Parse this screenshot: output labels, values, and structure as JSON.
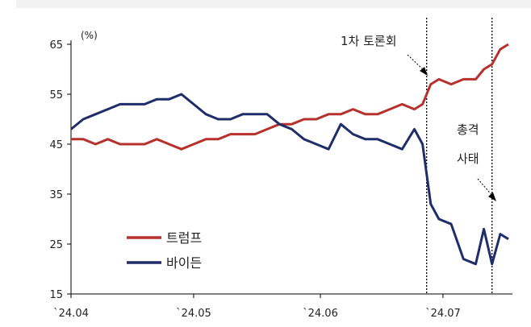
{
  "chart_data": {
    "type": "line",
    "unit_label": "(%)",
    "ylim": [
      15,
      65
    ],
    "yticks": [
      "65",
      "55",
      "45",
      "35",
      "25",
      "15"
    ],
    "xticks": [
      "`24.04",
      "`24.05",
      "`24.06",
      "`24.07"
    ],
    "legend": {
      "placement": "bottom-left"
    },
    "annotations": {
      "debate": {
        "text": "1차 토론회",
        "date": "2024-06-27"
      },
      "shooting": {
        "line1": "총격",
        "line2": "사태",
        "date": "2024-07-13"
      }
    },
    "series": [
      {
        "name": "트럼프",
        "color": "#b7312c",
        "points": [
          [
            "2024-04-01",
            46
          ],
          [
            "2024-04-04",
            46
          ],
          [
            "2024-04-07",
            45
          ],
          [
            "2024-04-10",
            46
          ],
          [
            "2024-04-13",
            45
          ],
          [
            "2024-04-16",
            45
          ],
          [
            "2024-04-19",
            45
          ],
          [
            "2024-04-22",
            46
          ],
          [
            "2024-04-25",
            45
          ],
          [
            "2024-04-28",
            44
          ],
          [
            "2024-05-01",
            45
          ],
          [
            "2024-05-04",
            46
          ],
          [
            "2024-05-07",
            46
          ],
          [
            "2024-05-10",
            47
          ],
          [
            "2024-05-13",
            47
          ],
          [
            "2024-05-16",
            47
          ],
          [
            "2024-05-19",
            48
          ],
          [
            "2024-05-22",
            49
          ],
          [
            "2024-05-25",
            49
          ],
          [
            "2024-05-28",
            50
          ],
          [
            "2024-05-31",
            50
          ],
          [
            "2024-06-03",
            51
          ],
          [
            "2024-06-06",
            51
          ],
          [
            "2024-06-09",
            52
          ],
          [
            "2024-06-12",
            51
          ],
          [
            "2024-06-15",
            51
          ],
          [
            "2024-06-18",
            52
          ],
          [
            "2024-06-21",
            53
          ],
          [
            "2024-06-24",
            52
          ],
          [
            "2024-06-26",
            53
          ],
          [
            "2024-06-28",
            57
          ],
          [
            "2024-06-30",
            58
          ],
          [
            "2024-07-03",
            57
          ],
          [
            "2024-07-06",
            58
          ],
          [
            "2024-07-09",
            58
          ],
          [
            "2024-07-11",
            60
          ],
          [
            "2024-07-13",
            61
          ],
          [
            "2024-07-15",
            64
          ],
          [
            "2024-07-17",
            65
          ]
        ]
      },
      {
        "name": "바이든",
        "color": "#1f2d6b",
        "points": [
          [
            "2024-04-01",
            48
          ],
          [
            "2024-04-04",
            50
          ],
          [
            "2024-04-07",
            51
          ],
          [
            "2024-04-10",
            52
          ],
          [
            "2024-04-13",
            53
          ],
          [
            "2024-04-16",
            53
          ],
          [
            "2024-04-19",
            53
          ],
          [
            "2024-04-22",
            54
          ],
          [
            "2024-04-25",
            54
          ],
          [
            "2024-04-28",
            55
          ],
          [
            "2024-05-01",
            53
          ],
          [
            "2024-05-04",
            51
          ],
          [
            "2024-05-07",
            50
          ],
          [
            "2024-05-10",
            50
          ],
          [
            "2024-05-13",
            51
          ],
          [
            "2024-05-16",
            51
          ],
          [
            "2024-05-19",
            51
          ],
          [
            "2024-05-22",
            49
          ],
          [
            "2024-05-25",
            48
          ],
          [
            "2024-05-28",
            46
          ],
          [
            "2024-05-31",
            45
          ],
          [
            "2024-06-03",
            44
          ],
          [
            "2024-06-06",
            49
          ],
          [
            "2024-06-09",
            47
          ],
          [
            "2024-06-12",
            46
          ],
          [
            "2024-06-15",
            46
          ],
          [
            "2024-06-18",
            45
          ],
          [
            "2024-06-21",
            44
          ],
          [
            "2024-06-24",
            48
          ],
          [
            "2024-06-26",
            45
          ],
          [
            "2024-06-28",
            33
          ],
          [
            "2024-06-30",
            30
          ],
          [
            "2024-07-03",
            29
          ],
          [
            "2024-07-06",
            22
          ],
          [
            "2024-07-09",
            21
          ],
          [
            "2024-07-11",
            28
          ],
          [
            "2024-07-13",
            21
          ],
          [
            "2024-07-15",
            27
          ],
          [
            "2024-07-17",
            26
          ]
        ]
      }
    ]
  }
}
